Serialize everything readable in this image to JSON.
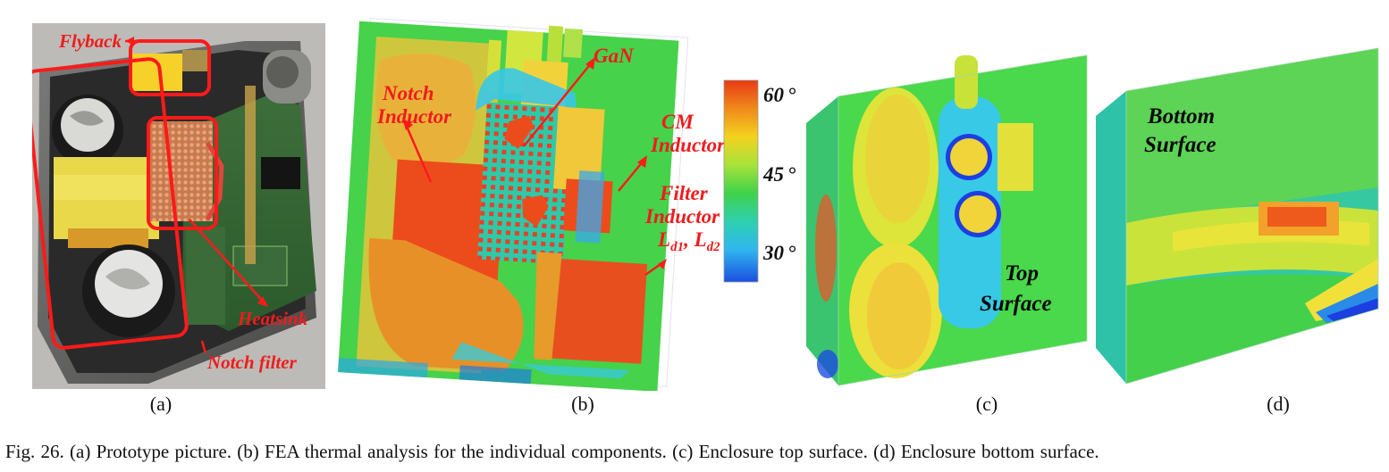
{
  "panel_a": {
    "label": "(a)",
    "annotations": {
      "flyback": "Flyback",
      "heatsink": "Heatsink",
      "notch_filter": "Notch filter"
    }
  },
  "panel_b": {
    "label": "(b)",
    "annotations": {
      "notch_l1": "Notch",
      "notch_l2": "Inductor",
      "gan": "GaN",
      "cm_l1": "CM",
      "cm_l2": "Inductor",
      "filter_l1": "Filter",
      "filter_l2": "Inductor",
      "ld_L1": "L",
      "ld_sub1": "d1",
      "ld_sep": ", ",
      "ld_L2": "L",
      "ld_sub2": "d2"
    }
  },
  "colorbar": {
    "ticks": [
      "60",
      "45",
      "30"
    ],
    "unit_mark": "°",
    "colors": [
      "#e83a14",
      "#f08a1a",
      "#f3d21f",
      "#a8e23a",
      "#3fd24a",
      "#2fd0b0",
      "#2fb6ee",
      "#1b4fe0"
    ]
  },
  "panel_c": {
    "label": "(c)",
    "surface_l1": "Top",
    "surface_l2": "Surface"
  },
  "panel_d": {
    "label": "(d)",
    "surface_l1": "Bottom",
    "surface_l2": "Surface"
  },
  "caption": "Fig. 26.   (a) Prototype picture. (b) FEA thermal analysis for the individual components. (c) Enclosure top surface. (d) Enclosure bottom surface."
}
